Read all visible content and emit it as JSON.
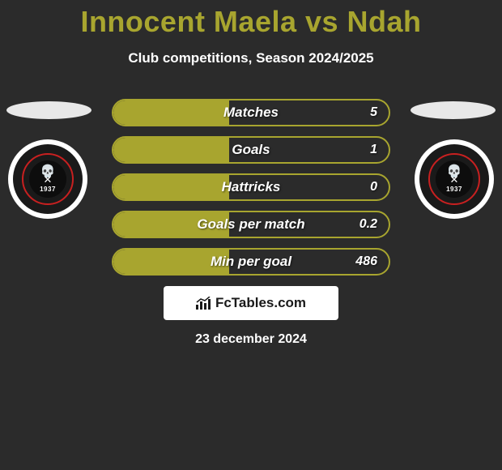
{
  "title": "Innocent Maela vs Ndah",
  "subtitle": "Club competitions, Season 2024/2025",
  "colors": {
    "accent": "#a8a52f",
    "background": "#2b2b2b",
    "text": "#ffffff",
    "box_bg": "#ffffff",
    "box_text": "#1a1a1a"
  },
  "crest": {
    "year": "1937",
    "outer_bg": "#ffffff",
    "inner_bg": "#1a1a1a",
    "ring_color": "#c82020"
  },
  "stats": [
    {
      "label": "Matches",
      "value": "5",
      "fill_pct": 42
    },
    {
      "label": "Goals",
      "value": "1",
      "fill_pct": 42
    },
    {
      "label": "Hattricks",
      "value": "0",
      "fill_pct": 42
    },
    {
      "label": "Goals per match",
      "value": "0.2",
      "fill_pct": 42
    },
    {
      "label": "Min per goal",
      "value": "486",
      "fill_pct": 42
    }
  ],
  "brand": "FcTables.com",
  "date": "23 december 2024"
}
